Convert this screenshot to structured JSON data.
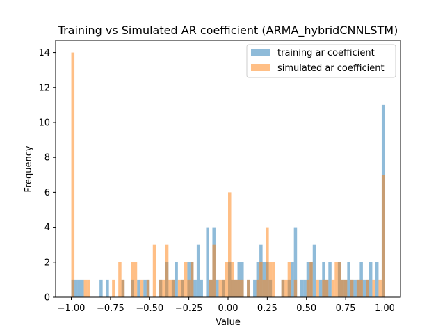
{
  "chart_data": {
    "type": "bar",
    "title": "Training vs Simulated AR coefficient (ARMA_hybridCNNLSTM)",
    "xlabel": "Value",
    "ylabel": "Frequency",
    "xlim": [
      -1.1,
      1.1
    ],
    "ylim": [
      0,
      14.7
    ],
    "xticks": [
      -1.0,
      -0.75,
      -0.5,
      -0.25,
      0.0,
      0.25,
      0.5,
      0.75,
      1.0
    ],
    "xtick_labels": [
      "−1.00",
      "−0.75",
      "−0.50",
      "−0.25",
      "0.00",
      "0.25",
      "0.50",
      "0.75",
      "1.00"
    ],
    "yticks": [
      0,
      2,
      4,
      6,
      8,
      10,
      12,
      14
    ],
    "ytick_labels": [
      "0",
      "2",
      "4",
      "6",
      "8",
      "10",
      "12",
      "14"
    ],
    "bin_width": 0.02,
    "grid": false,
    "legend_position": "top-right",
    "series": [
      {
        "name": "training ar coefficient",
        "color": "#1f77b4",
        "opacity": 0.5,
        "bins": [
          [
            -1.0,
            1
          ],
          [
            -0.98,
            1
          ],
          [
            -0.96,
            1
          ],
          [
            -0.94,
            1
          ],
          [
            -0.82,
            1
          ],
          [
            -0.78,
            1
          ],
          [
            -0.68,
            1
          ],
          [
            -0.62,
            1
          ],
          [
            -0.58,
            1
          ],
          [
            -0.54,
            1
          ],
          [
            -0.52,
            1
          ],
          [
            -0.44,
            1
          ],
          [
            -0.4,
            2
          ],
          [
            -0.36,
            1
          ],
          [
            -0.34,
            2
          ],
          [
            -0.3,
            1
          ],
          [
            -0.26,
            2
          ],
          [
            -0.24,
            2
          ],
          [
            -0.22,
            1
          ],
          [
            -0.2,
            3
          ],
          [
            -0.18,
            1
          ],
          [
            -0.14,
            4
          ],
          [
            -0.12,
            1
          ],
          [
            -0.1,
            4
          ],
          [
            -0.08,
            1
          ],
          [
            -0.04,
            1
          ],
          [
            0.0,
            2
          ],
          [
            0.02,
            1
          ],
          [
            0.04,
            1
          ],
          [
            0.06,
            2
          ],
          [
            0.08,
            2
          ],
          [
            0.12,
            1
          ],
          [
            0.16,
            1
          ],
          [
            0.18,
            2
          ],
          [
            0.2,
            3
          ],
          [
            0.22,
            2
          ],
          [
            0.24,
            2
          ],
          [
            0.26,
            1
          ],
          [
            0.34,
            1
          ],
          [
            0.38,
            1
          ],
          [
            0.4,
            2
          ],
          [
            0.42,
            4
          ],
          [
            0.46,
            1
          ],
          [
            0.48,
            1
          ],
          [
            0.5,
            2
          ],
          [
            0.52,
            2
          ],
          [
            0.54,
            3
          ],
          [
            0.58,
            1
          ],
          [
            0.6,
            2
          ],
          [
            0.62,
            1
          ],
          [
            0.64,
            2
          ],
          [
            0.7,
            2
          ],
          [
            0.72,
            1
          ],
          [
            0.74,
            1
          ],
          [
            0.76,
            2
          ],
          [
            0.78,
            1
          ],
          [
            0.8,
            1
          ],
          [
            0.82,
            1
          ],
          [
            0.84,
            2
          ],
          [
            0.86,
            1
          ],
          [
            0.88,
            1
          ],
          [
            0.9,
            2
          ],
          [
            0.94,
            2
          ],
          [
            0.98,
            11
          ]
        ]
      },
      {
        "name": "simulated ar coefficient",
        "color": "#ff7f0e",
        "opacity": 0.5,
        "bins": [
          [
            -1.0,
            14
          ],
          [
            -0.92,
            1
          ],
          [
            -0.9,
            1
          ],
          [
            -0.74,
            1
          ],
          [
            -0.7,
            2
          ],
          [
            -0.68,
            1
          ],
          [
            -0.62,
            2
          ],
          [
            -0.6,
            2
          ],
          [
            -0.56,
            1
          ],
          [
            -0.52,
            1
          ],
          [
            -0.48,
            3
          ],
          [
            -0.44,
            1
          ],
          [
            -0.42,
            1
          ],
          [
            -0.4,
            3
          ],
          [
            -0.38,
            1
          ],
          [
            -0.36,
            1
          ],
          [
            -0.32,
            1
          ],
          [
            -0.3,
            1
          ],
          [
            -0.28,
            2
          ],
          [
            -0.26,
            1
          ],
          [
            -0.24,
            2
          ],
          [
            -0.12,
            1
          ],
          [
            -0.1,
            3
          ],
          [
            -0.06,
            1
          ],
          [
            -0.04,
            1
          ],
          [
            -0.02,
            2
          ],
          [
            0.0,
            6
          ],
          [
            0.02,
            2
          ],
          [
            0.04,
            1
          ],
          [
            0.06,
            1
          ],
          [
            0.08,
            1
          ],
          [
            0.12,
            1
          ],
          [
            0.18,
            1
          ],
          [
            0.2,
            2
          ],
          [
            0.22,
            1
          ],
          [
            0.24,
            4
          ],
          [
            0.26,
            2
          ],
          [
            0.28,
            2
          ],
          [
            0.34,
            1
          ],
          [
            0.36,
            1
          ],
          [
            0.38,
            2
          ],
          [
            0.42,
            1
          ],
          [
            0.5,
            1
          ],
          [
            0.52,
            2
          ],
          [
            0.56,
            1
          ],
          [
            0.6,
            1
          ],
          [
            0.62,
            1
          ],
          [
            0.66,
            1
          ],
          [
            0.68,
            2
          ],
          [
            0.7,
            2
          ],
          [
            0.72,
            1
          ],
          [
            0.74,
            1
          ],
          [
            0.78,
            1
          ],
          [
            0.82,
            1
          ],
          [
            0.84,
            1
          ],
          [
            0.88,
            1
          ],
          [
            0.92,
            1
          ],
          [
            0.96,
            1
          ],
          [
            0.98,
            7
          ]
        ]
      }
    ]
  }
}
